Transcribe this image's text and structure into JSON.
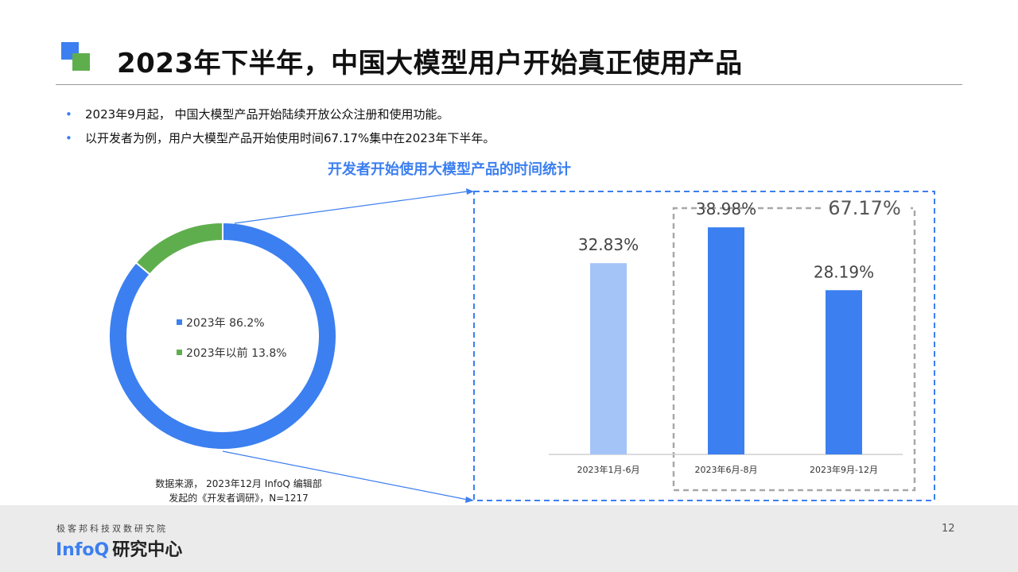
{
  "header": {
    "title": "2023年下半年，中国大模型用户开始真正使用产品"
  },
  "bullets": [
    "2023年9月起， 中国大模型产品开始陆续开放公众注册和使用功能。",
    "以开发者为例，用户大模型产品开始使用时间67.17%集中在2023年下半年。"
  ],
  "chart_title": "开发者开始使用大模型产品的时间统计",
  "colors": {
    "accent_blue": "#3c7ff0",
    "light_blue": "#a4c4f8",
    "green": "#5fae4e",
    "dashed_gray": "#a8a8a8"
  },
  "chart_data": [
    {
      "type": "pie",
      "style": "donut",
      "labels": [
        "2023年",
        "2023年以前"
      ],
      "values": [
        86.2,
        13.8
      ],
      "colors": [
        "#3c7ff0",
        "#5fae4e"
      ],
      "legend": [
        {
          "label": "2023年 86.2%",
          "color": "#3c7ff0"
        },
        {
          "label": "2023年以前 13.8%",
          "color": "#5fae4e"
        }
      ]
    },
    {
      "type": "bar",
      "categories": [
        "2023年1月-6月",
        "2023年6月-8月",
        "2023年9月-12月"
      ],
      "values": [
        32.83,
        38.98,
        28.19
      ],
      "value_labels": [
        "32.83%",
        "38.98%",
        "28.19%"
      ],
      "colors": [
        "#a4c4f8",
        "#3c7ff0",
        "#3c7ff0"
      ],
      "ylim": [
        0,
        45
      ],
      "annotation": {
        "label": "67.17%",
        "categories": [
          "2023年6月-8月",
          "2023年9月-12月"
        ]
      }
    }
  ],
  "source": {
    "line1": "数据来源， 2023年12月 InfoQ 编辑部",
    "line2": "发起的《开发者调研》，N=1217"
  },
  "footer": {
    "org": "极客邦科技双数研究院",
    "brand_infoq": "InfoQ",
    "brand_center": "研究中心",
    "page_number": "12"
  }
}
